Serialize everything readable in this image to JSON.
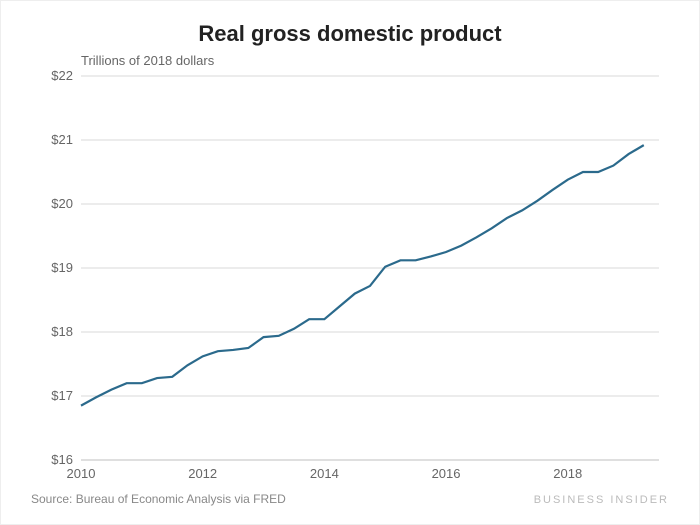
{
  "chart": {
    "type": "line",
    "title": "Real gross domestic product",
    "subtitle": "Trillions of 2018 dollars",
    "source_label": "Source: Bureau of Economic Analysis via FRED",
    "brand": "BUSINESS INSIDER",
    "background_color": "#ffffff",
    "grid_color": "#d9d9d9",
    "baseline_color": "#bfbfbf",
    "line_color": "#2b6a8c",
    "line_width": 2.2,
    "title_fontsize": 22,
    "title_color": "#222222",
    "subtitle_fontsize": 13,
    "subtitle_color": "#666666",
    "tick_fontsize": 13,
    "tick_color": "#666666",
    "xlim": [
      2010,
      2019.5
    ],
    "ylim": [
      16,
      22
    ],
    "y_ticks": [
      16,
      17,
      18,
      19,
      20,
      21,
      22
    ],
    "y_tick_labels": [
      "$16",
      "$17",
      "$18",
      "$19",
      "$20",
      "$21",
      "$22"
    ],
    "x_ticks": [
      2010,
      2012,
      2014,
      2016,
      2018
    ],
    "x_tick_labels": [
      "2010",
      "2012",
      "2014",
      "2016",
      "2018"
    ],
    "series": {
      "x": [
        2010.0,
        2010.25,
        2010.5,
        2010.75,
        2011.0,
        2011.25,
        2011.5,
        2011.75,
        2012.0,
        2012.25,
        2012.5,
        2012.75,
        2013.0,
        2013.25,
        2013.5,
        2013.75,
        2014.0,
        2014.25,
        2014.5,
        2014.75,
        2015.0,
        2015.25,
        2015.5,
        2015.75,
        2016.0,
        2016.25,
        2016.5,
        2016.75,
        2017.0,
        2017.25,
        2017.5,
        2017.75,
        2018.0,
        2018.25,
        2018.5,
        2018.75,
        2019.0,
        2019.25
      ],
      "y": [
        16.85,
        16.98,
        17.1,
        17.2,
        17.2,
        17.28,
        17.3,
        17.48,
        17.62,
        17.7,
        17.72,
        17.75,
        17.92,
        17.94,
        18.05,
        18.2,
        18.2,
        18.4,
        18.6,
        18.72,
        19.02,
        19.12,
        19.12,
        19.18,
        19.25,
        19.35,
        19.48,
        19.62,
        19.78,
        19.9,
        20.05,
        20.22,
        20.38,
        20.5,
        20.5,
        20.6,
        20.78,
        20.92
      ]
    }
  }
}
